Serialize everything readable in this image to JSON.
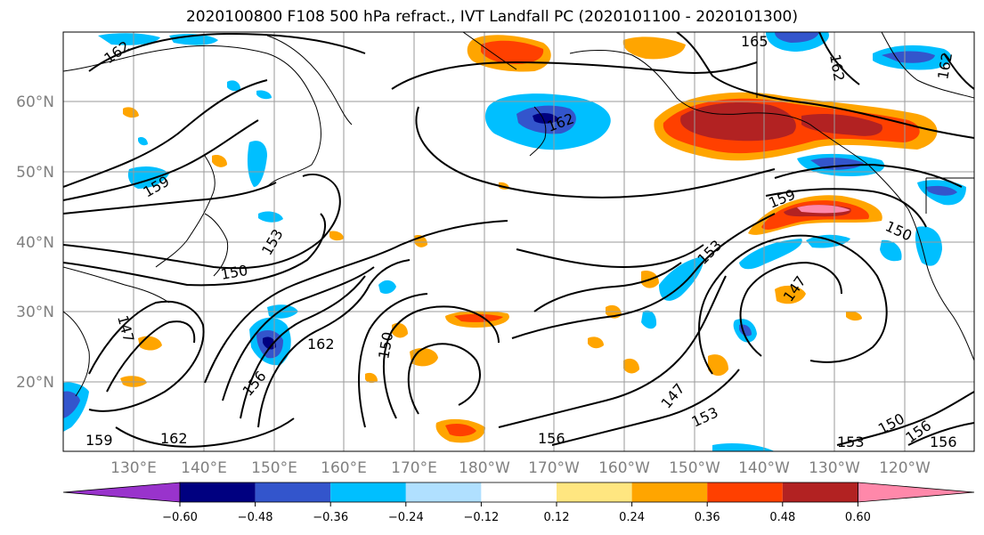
{
  "title": "2020100800 F108 500 hPa refract., IVT Landfall PC (2020101100 - 2020101300)",
  "lat_labels": [
    "60°N",
    "50°N",
    "40°N",
    "30°N",
    "20°N"
  ],
  "lon_labels": [
    "130°E",
    "140°E",
    "150°E",
    "160°E",
    "170°E",
    "180°W",
    "170°W",
    "160°W",
    "150°W",
    "140°W",
    "130°W",
    "120°W"
  ],
  "contour_labels": [
    "162",
    "165",
    "162",
    "162",
    "159",
    "162",
    "159",
    "150",
    "153",
    "150",
    "147",
    "153",
    "147",
    "162",
    "156",
    "150",
    "147",
    "153",
    "156",
    "150",
    "156",
    "162",
    "156",
    "153",
    "159"
  ],
  "colorbar": {
    "ticks": [
      "−0.60",
      "−0.48",
      "−0.36",
      "−0.24",
      "−0.12",
      "0.12",
      "0.24",
      "0.36",
      "0.48",
      "0.60"
    ],
    "colors": {
      "below": "#9933cc",
      "b1": "#000080",
      "b2": "#3355cc",
      "b3": "#00bfff",
      "b4": "#b0e0ff",
      "b5": "#ffffff",
      "b6": "#ffe680",
      "b7": "#ffa500",
      "b8": "#ff4000",
      "b9": "#b22222",
      "above": "#ff88aa"
    }
  }
}
